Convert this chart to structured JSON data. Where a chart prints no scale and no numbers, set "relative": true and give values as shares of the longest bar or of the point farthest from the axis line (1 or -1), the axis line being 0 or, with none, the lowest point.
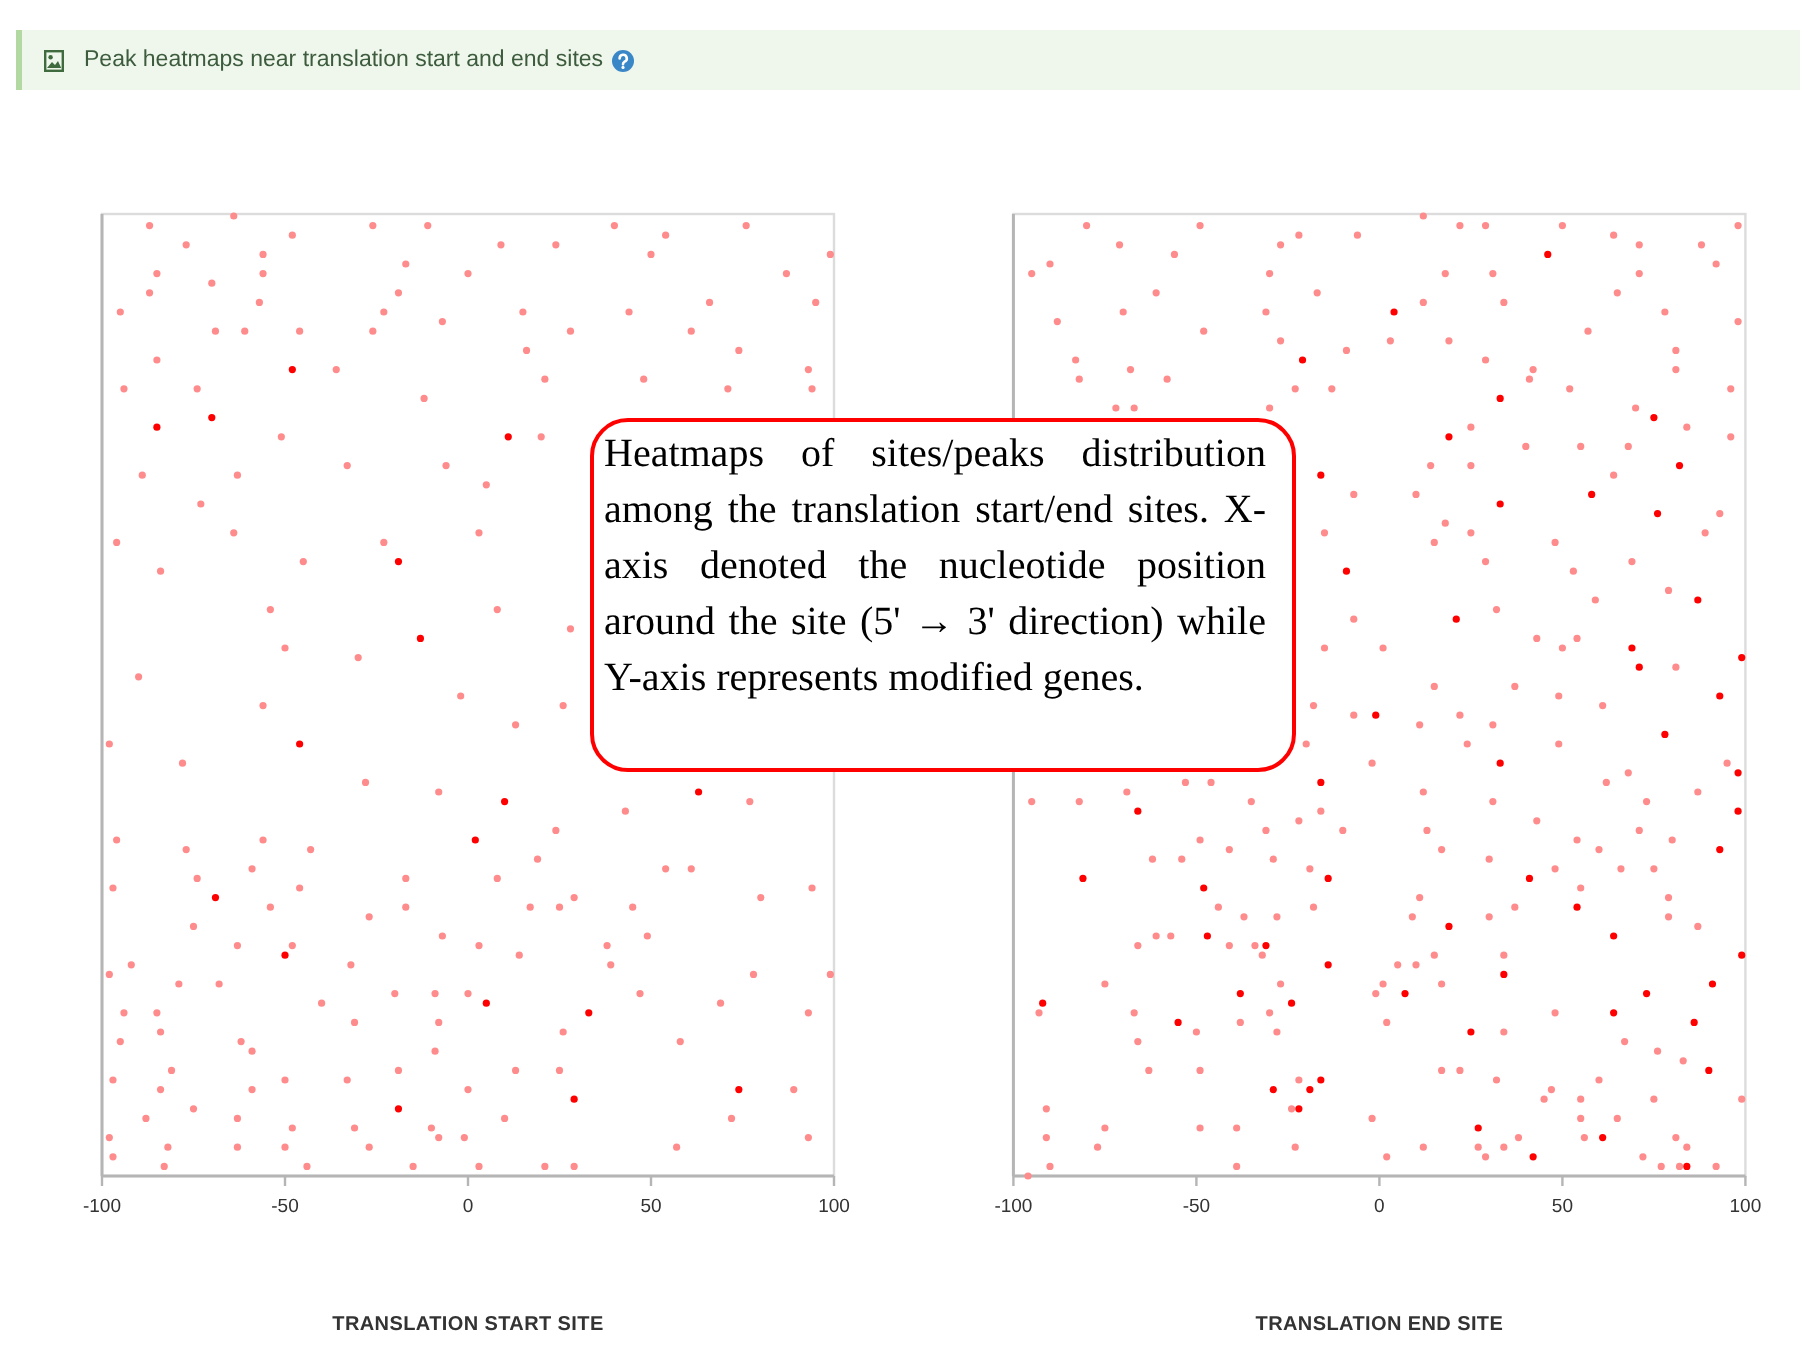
{
  "chart_data": [
    {
      "type": "scatter",
      "title": "Peak heatmaps near translation start and end sites",
      "xlabel": "TRANSLATION START SITE",
      "annotations": [
        "Heatmaps of sites/peaks distribution among the translation start/end sites. X-axis denoted the nucleotide position around the site (5' → 3' direction) while Y-axis represents modified genes."
      ],
      "xlim": [
        -100,
        100
      ],
      "xticks": [
        -100,
        -50,
        0,
        50,
        100
      ],
      "relative": true,
      "tick_labels": "x",
      "marker": "circle",
      "series": [
        {
          "color": "#ff8c8c",
          "x": [
            -64,
            -87,
            -26,
            -11,
            -48,
            -77,
            9,
            40,
            76,
            54,
            99,
            -56,
            -17,
            -85,
            50,
            87,
            24,
            0,
            -56,
            -70,
            -19,
            -87,
            -57,
            15,
            44,
            66,
            95,
            -95,
            -69,
            -26,
            -23,
            -61,
            -46,
            -7,
            28,
            61,
            -85,
            -36,
            16,
            74,
            93,
            94,
            71,
            48,
            21,
            -12,
            -74,
            -94,
            -51,
            -33,
            -63,
            -89,
            -6,
            5,
            20,
            28,
            -45,
            -96,
            -84,
            -54,
            -50,
            -90,
            -30,
            -64,
            3,
            -23,
            -2,
            -73,
            8,
            -98,
            -78,
            -56,
            -28,
            -8,
            13,
            26,
            77,
            -96,
            -77,
            -56,
            -43,
            24,
            43,
            54,
            -97,
            -74,
            -59,
            -46,
            -17,
            8,
            19,
            61,
            80,
            -54,
            -27,
            -17,
            17,
            25,
            29,
            45,
            -75,
            -63,
            -48,
            -7,
            3,
            38,
            49,
            -32,
            14,
            39,
            -98,
            -92,
            -79,
            -68,
            99,
            78,
            0,
            47,
            -94,
            -85,
            -40,
            -20,
            -9,
            93,
            69,
            -95,
            -84,
            -62,
            -31,
            -8,
            26,
            58,
            -81,
            -59,
            -50,
            -19,
            -9,
            13,
            25,
            -97,
            -84,
            -59,
            -33,
            0,
            89,
            -75,
            -88,
            -63,
            -48,
            -31,
            -10,
            10,
            -1,
            72,
            -98,
            -82,
            -63,
            -50,
            -27,
            -8,
            57,
            93,
            -83,
            -44,
            -15,
            3,
            29,
            21,
            -97,
            94
          ],
          "values": [
            1.0,
            0.99,
            0.99,
            0.99,
            0.98,
            0.97,
            0.97,
            0.99,
            0.99,
            0.98,
            0.96,
            0.96,
            0.95,
            0.94,
            0.96,
            0.94,
            0.97,
            0.94,
            0.94,
            0.93,
            0.92,
            0.92,
            0.91,
            0.9,
            0.9,
            0.91,
            0.91,
            0.9,
            0.88,
            0.88,
            0.9,
            0.88,
            0.88,
            0.89,
            0.88,
            0.88,
            0.85,
            0.84,
            0.86,
            0.86,
            0.84,
            0.82,
            0.82,
            0.83,
            0.83,
            0.81,
            0.82,
            0.82,
            0.77,
            0.74,
            0.73,
            0.73,
            0.74,
            0.72,
            0.77,
            0.57,
            0.64,
            0.66,
            0.63,
            0.59,
            0.55,
            0.52,
            0.54,
            0.67,
            0.67,
            0.66,
            0.5,
            0.7,
            0.59,
            0.45,
            0.43,
            0.49,
            0.41,
            0.4,
            0.47,
            0.49,
            0.39,
            0.35,
            0.34,
            0.35,
            0.34,
            0.36,
            0.38,
            0.32,
            0.3,
            0.31,
            0.32,
            0.3,
            0.31,
            0.31,
            0.33,
            0.32,
            0.29,
            0.28,
            0.27,
            0.28,
            0.28,
            0.28,
            0.29,
            0.28,
            0.26,
            0.24,
            0.24,
            0.25,
            0.24,
            0.24,
            0.25,
            0.22,
            0.23,
            0.22,
            0.21,
            0.22,
            0.2,
            0.2,
            0.21,
            0.21,
            0.19,
            0.19,
            0.17,
            0.17,
            0.18,
            0.19,
            0.19,
            0.17,
            0.18,
            0.14,
            0.15,
            0.14,
            0.16,
            0.16,
            0.15,
            0.14,
            0.11,
            0.13,
            0.1,
            0.11,
            0.13,
            0.11,
            0.11,
            0.1,
            0.09,
            0.09,
            0.1,
            0.09,
            0.09,
            0.07,
            0.06,
            0.06,
            0.05,
            0.05,
            0.05,
            0.06,
            0.04,
            0.06,
            0.04,
            0.03,
            0.03,
            0.03,
            0.03,
            0.04,
            0.03,
            0.04,
            0.01,
            0.01,
            0.01,
            0.01,
            0.01,
            0.01,
            0.02,
            0.3
          ]
        },
        {
          "color": "#ff0000",
          "x": [
            -48,
            11,
            -85,
            -70,
            -19,
            -13,
            -46,
            10,
            2,
            63,
            -69,
            -50,
            5,
            33,
            74,
            29,
            -19
          ],
          "values": [
            0.84,
            0.77,
            0.78,
            0.79,
            0.64,
            0.56,
            0.45,
            0.39,
            0.35,
            0.4,
            0.29,
            0.23,
            0.18,
            0.17,
            0.09,
            0.08,
            0.07
          ]
        }
      ]
    },
    {
      "type": "scatter",
      "xlabel": "TRANSLATION END SITE",
      "xlim": [
        -100,
        100
      ],
      "xticks": [
        -100,
        -50,
        0,
        50,
        100
      ],
      "relative": true,
      "tick_labels": "x",
      "marker": "circle",
      "series": [
        {
          "color": "#ff8c8c",
          "x": [
            -80,
            12,
            -49,
            -71,
            -90,
            -95,
            -56,
            -27,
            -22,
            -6,
            22,
            29,
            50,
            64,
            71,
            88,
            98,
            92,
            -61,
            -70,
            -88,
            -30,
            -17,
            18,
            31,
            12,
            34,
            65,
            78,
            71,
            -48,
            -31,
            -27,
            -9,
            3,
            19,
            29,
            42,
            41,
            57,
            81,
            81,
            96,
            98,
            -82,
            -83,
            -68,
            -58,
            -23,
            -13,
            -67,
            -72,
            -30,
            52,
            25,
            70,
            84,
            14,
            25,
            40,
            55,
            68,
            96,
            64,
            10,
            -7,
            18,
            25,
            93,
            89,
            15,
            48,
            69,
            53,
            29,
            -15,
            59,
            79,
            32,
            -7,
            54,
            43,
            1,
            15,
            37,
            81,
            -15,
            50,
            -18,
            -7,
            11,
            22,
            31,
            49,
            61,
            49,
            24,
            95,
            -2,
            -20,
            -95,
            -82,
            -69,
            -53,
            -46,
            -35,
            -31,
            -22,
            -16,
            -10,
            12,
            31,
            43,
            62,
            68,
            73,
            87,
            71,
            80,
            54,
            60,
            17,
            30,
            13,
            -62,
            -54,
            -49,
            -41,
            -19,
            -29,
            -44,
            -37,
            -28,
            -18,
            11,
            9,
            30,
            37,
            48,
            55,
            66,
            75,
            79,
            79,
            87,
            34,
            10,
            15,
            5,
            -32,
            -41,
            -34,
            -66,
            -61,
            -57,
            -75,
            -93,
            -67,
            -38,
            -30,
            -27,
            -28,
            1,
            -1,
            2,
            17,
            34,
            48,
            67,
            76,
            83,
            -91,
            -91,
            -90,
            -96,
            -77,
            -75,
            -63,
            -49,
            -66,
            -50,
            -49,
            -39,
            -39,
            -22,
            -24,
            -23,
            -2,
            2,
            12,
            17,
            22,
            32,
            27,
            29,
            34,
            38,
            45,
            47,
            55,
            55,
            56,
            65,
            60,
            75,
            72,
            77,
            82,
            92,
            84,
            81,
            99
          ],
          "values": [
            0.99,
            1.0,
            0.99,
            0.97,
            0.95,
            0.94,
            0.96,
            0.97,
            0.98,
            0.98,
            0.99,
            0.99,
            0.99,
            0.98,
            0.97,
            0.97,
            0.99,
            0.95,
            0.92,
            0.9,
            0.89,
            0.94,
            0.92,
            0.94,
            0.94,
            0.91,
            0.91,
            0.92,
            0.9,
            0.94,
            0.88,
            0.9,
            0.87,
            0.86,
            0.87,
            0.87,
            0.85,
            0.84,
            0.83,
            0.88,
            0.86,
            0.84,
            0.82,
            0.89,
            0.83,
            0.85,
            0.84,
            0.83,
            0.82,
            0.82,
            0.8,
            0.8,
            0.8,
            0.82,
            0.78,
            0.8,
            0.78,
            0.74,
            0.74,
            0.76,
            0.76,
            0.76,
            0.77,
            0.73,
            0.71,
            0.71,
            0.68,
            0.67,
            0.69,
            0.67,
            0.66,
            0.66,
            0.64,
            0.63,
            0.64,
            0.67,
            0.6,
            0.61,
            0.59,
            0.58,
            0.56,
            0.56,
            0.55,
            0.51,
            0.51,
            0.53,
            0.55,
            0.55,
            0.49,
            0.48,
            0.47,
            0.48,
            0.47,
            0.5,
            0.49,
            0.45,
            0.45,
            0.43,
            0.43,
            0.45,
            0.39,
            0.39,
            0.4,
            0.41,
            0.41,
            0.39,
            0.36,
            0.37,
            0.38,
            0.36,
            0.4,
            0.39,
            0.37,
            0.41,
            0.42,
            0.39,
            0.4,
            0.36,
            0.35,
            0.35,
            0.34,
            0.34,
            0.33,
            0.36,
            0.33,
            0.33,
            0.35,
            0.34,
            0.32,
            0.33,
            0.28,
            0.27,
            0.27,
            0.28,
            0.29,
            0.27,
            0.27,
            0.28,
            0.32,
            0.3,
            0.32,
            0.32,
            0.29,
            0.27,
            0.26,
            0.23,
            0.22,
            0.23,
            0.22,
            0.23,
            0.24,
            0.24,
            0.24,
            0.25,
            0.25,
            0.2,
            0.17,
            0.17,
            0.16,
            0.17,
            0.2,
            0.15,
            0.2,
            0.19,
            0.16,
            0.2,
            0.15,
            0.17,
            0.14,
            0.13,
            0.12,
            0.07,
            0.04,
            0.01,
            0.0,
            0.03,
            0.05,
            0.11,
            0.11,
            0.14,
            0.15,
            0.05,
            0.05,
            0.01,
            0.1,
            0.07,
            0.03,
            0.06,
            0.02,
            0.03,
            0.11,
            0.11,
            0.1,
            0.03,
            0.02,
            0.03,
            0.04,
            0.08,
            0.09,
            0.08,
            0.06,
            0.04,
            0.06,
            0.1,
            0.08,
            0.02,
            0.01,
            0.01,
            0.01,
            0.03,
            0.04,
            0.08
          ]
        },
        {
          "color": "#ff0000",
          "x": [
            46,
            4,
            -21,
            33,
            75,
            19,
            82,
            58,
            33,
            -16,
            76,
            -9,
            87,
            21,
            69,
            99,
            71,
            -1,
            78,
            93,
            33,
            98,
            -16,
            -66,
            93,
            98,
            -81,
            -48,
            -14,
            41,
            54,
            64,
            19,
            34,
            -14,
            -31,
            -47,
            -92,
            -55,
            -38,
            -24,
            7,
            25,
            64,
            73,
            91,
            86,
            90,
            -29,
            -19,
            -22,
            -16,
            27,
            42,
            61,
            84,
            99
          ],
          "values": [
            0.96,
            0.9,
            0.85,
            0.81,
            0.79,
            0.77,
            0.74,
            0.71,
            0.7,
            0.73,
            0.69,
            0.63,
            0.6,
            0.58,
            0.55,
            0.54,
            0.53,
            0.48,
            0.46,
            0.5,
            0.43,
            0.42,
            0.41,
            0.38,
            0.34,
            0.38,
            0.31,
            0.3,
            0.31,
            0.31,
            0.28,
            0.25,
            0.26,
            0.21,
            0.22,
            0.24,
            0.25,
            0.18,
            0.16,
            0.19,
            0.18,
            0.19,
            0.15,
            0.17,
            0.19,
            0.2,
            0.16,
            0.11,
            0.09,
            0.09,
            0.07,
            0.1,
            0.05,
            0.02,
            0.04,
            0.01,
            0.23
          ]
        }
      ]
    }
  ]
}
